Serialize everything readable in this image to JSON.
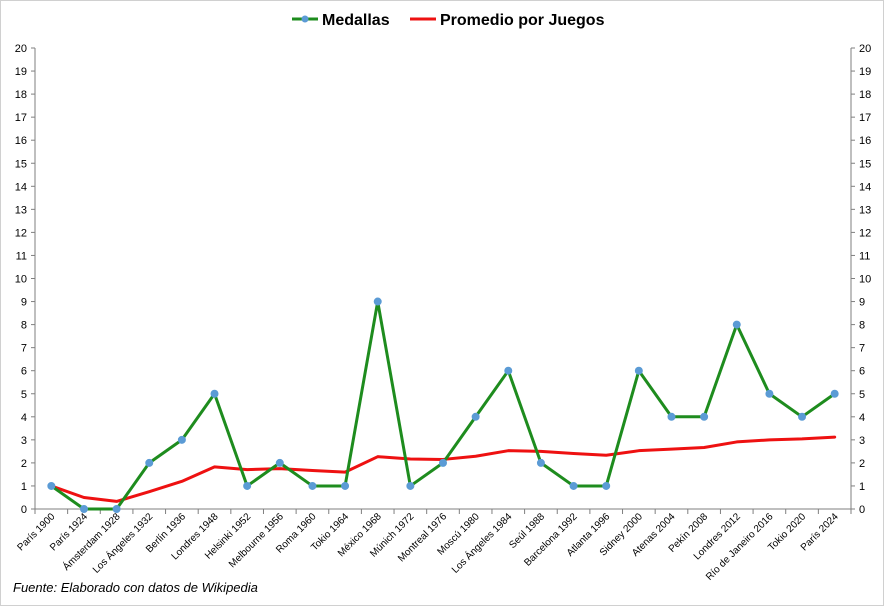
{
  "chart_data": {
    "type": "line",
    "categories": [
      "París 1900",
      "París 1924",
      "Ámsterdam 1928",
      "Los Ángeles 1932",
      "Berlín 1936",
      "Londres 1948",
      "Helsinki 1952",
      "Melbourne 1956",
      "Roma 1960",
      "Tokio 1964",
      "México 1968",
      "Múnich 1972",
      "Montreal 1976",
      "Moscú 1980",
      "Los Ángeles 1984",
      "Seúl 1988",
      "Barcelona 1992",
      "Atlanta 1996",
      "Sidney 2000",
      "Atenas 2004",
      "Pekín 2008",
      "Londres 2012",
      "Río de Janeiro 2016",
      "Tokio 2020",
      "París 2024"
    ],
    "series": [
      {
        "name": "Medallas",
        "color": "#1e8c1e",
        "marker_color": "#5b9bd5",
        "markers": true,
        "values": [
          1,
          0,
          0,
          2,
          3,
          5,
          1,
          2,
          1,
          1,
          9,
          1,
          2,
          4,
          6,
          2,
          1,
          1,
          6,
          4,
          4,
          8,
          5,
          4,
          5
        ]
      },
      {
        "name": "Promedio por Juegos",
        "color": "#ee1111",
        "markers": false,
        "values": [
          1.0,
          0.5,
          0.33,
          0.75,
          1.2,
          1.83,
          1.71,
          1.75,
          1.67,
          1.6,
          2.27,
          2.17,
          2.15,
          2.29,
          2.53,
          2.5,
          2.41,
          2.33,
          2.53,
          2.6,
          2.67,
          2.91,
          3.0,
          3.04,
          3.12
        ]
      }
    ],
    "ylim": [
      0,
      20
    ],
    "yticks": [
      0,
      1,
      2,
      3,
      4,
      5,
      6,
      7,
      8,
      9,
      10,
      11,
      12,
      13,
      14,
      15,
      16,
      17,
      18,
      19,
      20
    ],
    "secondary_y_axis": true,
    "legend_position": "top-center",
    "grid": false,
    "title": "",
    "xlabel": "",
    "ylabel": ""
  },
  "source_note": "Fuente: Elaborado con datos de Wikipedia"
}
